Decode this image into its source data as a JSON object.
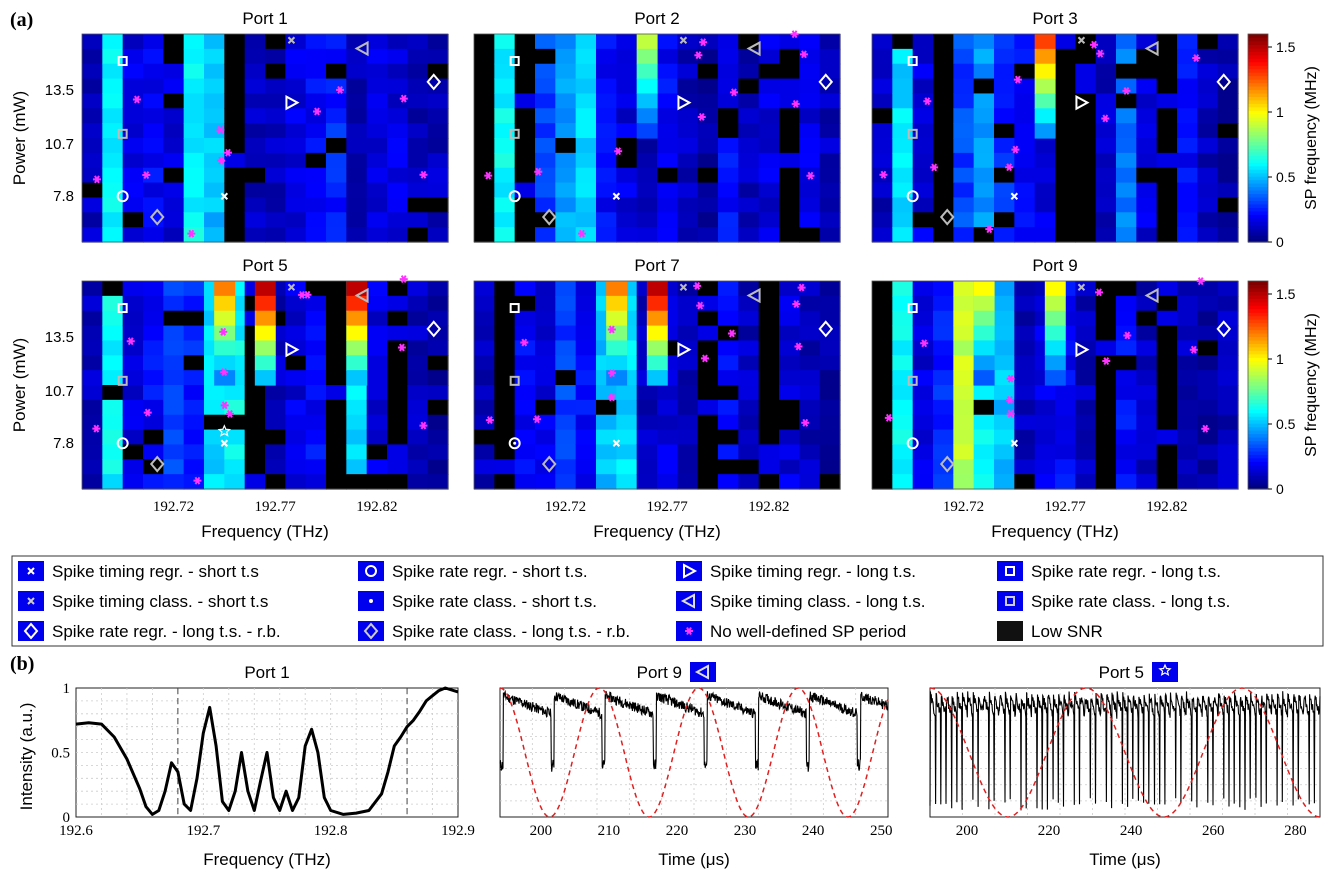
{
  "figure": {
    "panel_a_label": "(a)",
    "panel_b_label": "(b)"
  },
  "chart_data": [
    {
      "type": "heatmap",
      "panel": "a",
      "subplot_titles": [
        "Port 1",
        "Port 2",
        "Port 3",
        "Port 5",
        "Port 7",
        "Port 9"
      ],
      "xlabel": "Frequency (THz)",
      "ylabel": "Power (mW)",
      "xticks": [
        "192.72",
        "192.77",
        "192.82"
      ],
      "yticks": [
        "13.5",
        "10.7",
        "7.8"
      ],
      "colorbar_label": "SP frequency (MHz)",
      "colorbar_ticks": [
        "1.5",
        "1",
        "0.5",
        "0"
      ],
      "colorbar_range": [
        0,
        1.6
      ],
      "columns": [
        192.68,
        192.69,
        192.7,
        192.71,
        192.72,
        192.73,
        192.74,
        192.75,
        192.76,
        192.77,
        192.78,
        192.79,
        192.8,
        192.81,
        192.82,
        192.83,
        192.84,
        192.85
      ],
      "column_profiles": {
        "Port 1": [
          0.1,
          0.6,
          0.15,
          0.2,
          0.15,
          0.6,
          0.5,
          0.0,
          0.1,
          0.1,
          0.15,
          0.2,
          0.25,
          0.1,
          0.15,
          0.15,
          0.1,
          0.1
        ],
        "Port 2": [
          0.0,
          0.6,
          0.0,
          0.3,
          0.45,
          0.55,
          0.2,
          0.15,
          0.1,
          0.2,
          0.1,
          0.05,
          0.2,
          0.1,
          0.15,
          0.0,
          0.15,
          0.1
        ],
        "Port 3": [
          0.1,
          0.55,
          0.15,
          0.0,
          0.3,
          0.45,
          0.25,
          0.2,
          0.15,
          0.0,
          0.0,
          0.1,
          0.4,
          0.15,
          0.0,
          0.2,
          0.1,
          0.05
        ],
        "Port 5": [
          0.1,
          0.6,
          0.15,
          0.2,
          0.3,
          0.25,
          0.55,
          0.6,
          0.0,
          0.1,
          0.15,
          0.2,
          0.0,
          0.55,
          0.15,
          0.0,
          0.1,
          0.05
        ],
        "Port 7": [
          0.1,
          0.0,
          0.2,
          0.15,
          0.3,
          0.2,
          0.5,
          0.55,
          0.1,
          0.15,
          0.1,
          0.0,
          0.2,
          0.1,
          0.0,
          0.15,
          0.1,
          0.05
        ],
        "Port 9": [
          0.0,
          0.6,
          0.15,
          0.25,
          0.9,
          0.6,
          0.5,
          0.1,
          0.15,
          0.2,
          0.1,
          0.0,
          0.2,
          0.1,
          0.0,
          0.1,
          0.05,
          0.1
        ]
      },
      "hot_spots": {
        "Port 2": [
          {
            "x": 192.76,
            "value": 0.9
          }
        ],
        "Port 3": [
          {
            "x": 192.76,
            "value": 1.3
          }
        ],
        "Port 5": [
          {
            "x": 192.745,
            "value": 1.2
          },
          {
            "x": 192.765,
            "value": 1.5
          },
          {
            "x": 192.81,
            "value": 1.5
          }
        ],
        "Port 7": [
          {
            "x": 192.745,
            "value": 1.2
          },
          {
            "x": 192.765,
            "value": 1.5
          }
        ],
        "Port 9": [
          {
            "x": 192.73,
            "value": 1.0
          },
          {
            "x": 192.765,
            "value": 1.0
          }
        ]
      },
      "legend": {
        "entries": [
          "Spike timing regr. - short t.s",
          "Spike rate regr. - short t.s.",
          "Spike timing regr. - long t.s.",
          "Spike rate regr. - long t.s.",
          "Spike timing class. - short t.s",
          "Spike rate class. - short t.s.",
          "Spike timing class. - long t.s.",
          "Spike rate class. - long t.s.",
          "Spike rate regr. - long t.s. - r.b.",
          "Spike rate class. - long t.s. - r.b.",
          "No well-defined SP period",
          "Low  SNR"
        ],
        "symbols": [
          "x-white",
          "circle-white",
          "triangle-right-white",
          "square-white",
          "x-gray",
          "circle-dot-white",
          "triangle-left-white",
          "square-gray",
          "diamond-white",
          "diamond-gray",
          "asterisk-magenta",
          "black-square"
        ]
      }
    },
    {
      "type": "line",
      "panel": "b",
      "title": "Port 1",
      "xlabel": "Frequency (THz)",
      "ylabel": "Intensity (a.u.)",
      "xlim": [
        192.6,
        192.9
      ],
      "ylim": [
        0,
        1
      ],
      "xticks": [
        "192.6",
        "192.7",
        "192.8",
        "192.9"
      ],
      "yticks": [
        "0",
        "0.5",
        "1"
      ],
      "vlines": [
        192.68,
        192.86
      ],
      "x": [
        192.6,
        192.61,
        192.62,
        192.63,
        192.64,
        192.65,
        192.655,
        192.66,
        192.665,
        192.67,
        192.675,
        192.68,
        192.685,
        192.69,
        192.695,
        192.7,
        192.705,
        192.71,
        192.715,
        192.72,
        192.725,
        192.73,
        192.735,
        192.74,
        192.745,
        192.75,
        192.755,
        192.76,
        192.765,
        192.77,
        192.775,
        192.78,
        192.785,
        192.79,
        192.795,
        192.8,
        192.81,
        192.82,
        192.83,
        192.84,
        192.845,
        192.85,
        192.855,
        192.86,
        192.865,
        192.87,
        192.875,
        192.88,
        192.885,
        192.89,
        192.9
      ],
      "y": [
        0.72,
        0.73,
        0.72,
        0.62,
        0.45,
        0.22,
        0.08,
        0.02,
        0.05,
        0.2,
        0.42,
        0.35,
        0.1,
        0.05,
        0.3,
        0.65,
        0.85,
        0.55,
        0.12,
        0.05,
        0.2,
        0.5,
        0.2,
        0.05,
        0.28,
        0.5,
        0.15,
        0.05,
        0.2,
        0.05,
        0.15,
        0.55,
        0.68,
        0.5,
        0.15,
        0.05,
        0.02,
        0.03,
        0.05,
        0.18,
        0.35,
        0.55,
        0.62,
        0.7,
        0.75,
        0.82,
        0.9,
        0.94,
        0.98,
        1.0,
        0.97
      ]
    },
    {
      "type": "line",
      "panel": "b",
      "title": "Port 9",
      "title_symbol": "triangle-left-white",
      "xlabel": "Time (μs)",
      "xlim": [
        194,
        251
      ],
      "xticks": [
        "200",
        "210",
        "220",
        "230",
        "240",
        "250"
      ],
      "series": [
        {
          "style": "solid-black",
          "spike_period": 7.5,
          "description_values": {
            "min": 0.35,
            "max": 0.95
          }
        },
        {
          "style": "dashed-red",
          "period": 14.6,
          "phase_start": 194,
          "min": 0.0,
          "max": 1.0
        }
      ]
    },
    {
      "type": "line",
      "panel": "b",
      "title": "Port 5",
      "title_symbol": "star-white",
      "xlabel": "Time (μs)",
      "xlim": [
        191,
        286
      ],
      "xticks": [
        "200",
        "220",
        "240",
        "260",
        "280"
      ],
      "series": [
        {
          "style": "solid-black",
          "spike_period": 1.3,
          "description_values": {
            "min": 0.05,
            "max": 0.95
          }
        },
        {
          "style": "dashed-red",
          "period": 38,
          "phase_start": 191,
          "min": 0.0,
          "max": 1.0
        }
      ]
    }
  ]
}
